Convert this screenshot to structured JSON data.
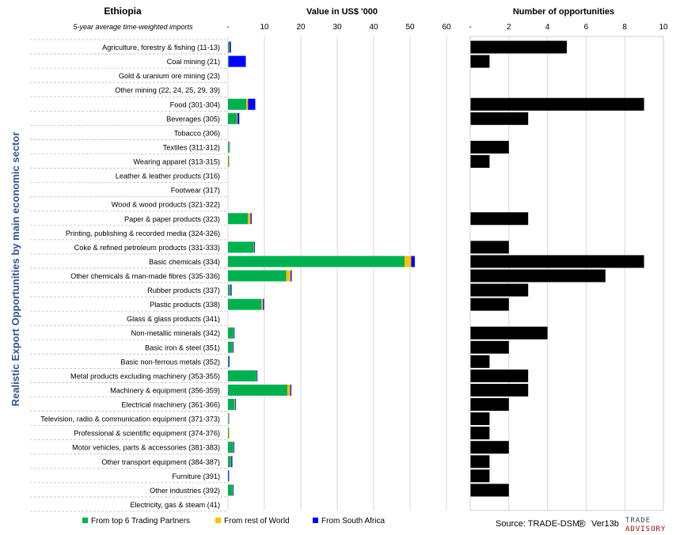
{
  "header": {
    "country": "Ethiopia",
    "subtitle": "5-year average time-weighted imports",
    "value_title": "Value in US$ '000",
    "opps_title": "Number of opportunities",
    "y_axis_title": "Realistic Export Opportunities by main economic sector"
  },
  "legend": [
    {
      "name": "From top 6 Trading Partners",
      "color": "#00b050"
    },
    {
      "name": "From rest of World",
      "color": "#ffc000"
    },
    {
      "name": "From South Africa",
      "color": "#0000ff"
    }
  ],
  "footer": {
    "source": "Source: TRADE-DSM",
    "registered": "®",
    "version": "Ver13b",
    "logo_line1": "TRADE",
    "logo_line2": "ADVISORY"
  },
  "chart_data": [
    {
      "type": "bar",
      "orientation": "horizontal",
      "stacked": true,
      "title": "Value in US$ '000",
      "xlim": [
        0,
        60
      ],
      "xticks": [
        "-",
        "10",
        "20",
        "30",
        "40",
        "50",
        "60"
      ],
      "categories": [
        "Agriculture, forestry & fishing (11-13)",
        "Coal mining (21)",
        "Gold & uranium ore mining (23)",
        "Other mining (22, 24, 25, 29, 39)",
        "Food (301-304)",
        "Beverages (305)",
        "Tobacco (306)",
        "Textiles (311-312)",
        "Wearing apparel (313-315)",
        "Leather & leather products (316)",
        "Footwear (317)",
        "Wood & wood products (321-322)",
        "Paper & paper products (323)",
        "Printing, publishing & recorded media (324-326)",
        "Coke & refined petroleum products (331-333)",
        "Basic chemicals (334)",
        "Other chemicals & man-made fibres (335-336)",
        "Rubber products (337)",
        "Plastic products (338)",
        "Glass & glass products (341)",
        "Non-metallic minerals (342)",
        "Basic iron & steel (351)",
        "Basic non-ferrous metals (352)",
        "Metal products excluding machinery (353-355)",
        "Machinery & equipment (356-359)",
        "Electrical machinery (361-366)",
        "Television, radio & communication equipment (371-373)",
        "Professional & scientific equipment (374-376)",
        "Motor vehicles, parts & accessories (381-383)",
        "Other transport equipment (384-387)",
        "Furniture (391)",
        "Other industries (392)",
        "Electricity, gas & steam (41)"
      ],
      "series": [
        {
          "name": "From top 6 Trading Partners",
          "color": "#00b050",
          "values": [
            0.3,
            0.2,
            0,
            0,
            5.0,
            2.4,
            0,
            0.3,
            0.2,
            0,
            0,
            0,
            5.5,
            0,
            7.1,
            48.5,
            16.0,
            0.6,
            9.2,
            0,
            1.5,
            1.2,
            0.2,
            7.8,
            16.3,
            1.8,
            0.1,
            0.2,
            1.4,
            0.8,
            0.1,
            1.2,
            0
          ]
        },
        {
          "name": "From rest of World",
          "color": "#ffc000",
          "values": [
            0.1,
            0,
            0,
            0,
            0.5,
            0.2,
            0,
            0.1,
            0.2,
            0,
            0,
            0,
            0.7,
            0,
            0.1,
            1.8,
            1.2,
            0.1,
            0.4,
            0,
            0.1,
            0.1,
            0,
            0.1,
            0.8,
            0.2,
            0.1,
            0.2,
            0.1,
            0.1,
            0,
            0.1,
            0
          ]
        },
        {
          "name": "From South Africa",
          "color": "#0000ff",
          "values": [
            0.4,
            4.7,
            0,
            0,
            2.0,
            0.5,
            0,
            0.1,
            0,
            0,
            0,
            0,
            0.3,
            0,
            0.2,
            1.0,
            0.3,
            0.3,
            0.3,
            0,
            0.2,
            0.2,
            0.2,
            0.2,
            0.3,
            0.2,
            0.1,
            0,
            0.2,
            0.3,
            0.2,
            0.2,
            0
          ]
        }
      ]
    },
    {
      "type": "bar",
      "orientation": "horizontal",
      "title": "Number of opportunities",
      "xlim": [
        0,
        10
      ],
      "xticks": [
        "-",
        "2",
        "4",
        "6",
        "8",
        "10"
      ],
      "color": "#000000",
      "values": [
        5,
        1,
        0,
        0,
        9,
        3,
        0,
        2,
        1,
        0,
        0,
        0,
        3,
        0,
        2,
        9,
        7,
        3,
        2,
        0,
        4,
        2,
        1,
        3,
        3,
        2,
        1,
        1,
        2,
        1,
        1,
        2,
        0
      ]
    }
  ]
}
